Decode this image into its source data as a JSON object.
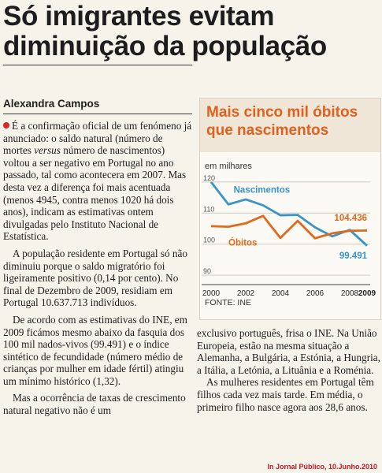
{
  "headline": "Só imigrantes evitam diminuição da população",
  "author": "Alexandra Campos",
  "col1": {
    "p1_a": "É a confirmação oficial de um fenómeno já anunciado: o saldo natural (número de mortes ",
    "p1_em": "versus",
    "p1_b": " número de nascimentos) voltou a ser negativo em Portugal no ano passado, tal como acontecera em 2007. Mas desta vez a diferença foi mais acentuada (menos 4945, contra menos 1020 há dois anos), indicam as estimativas ontem divulgadas pelo Instituto Nacional de Estatística.",
    "p2": "A população residente em Portugal só não diminuiu porque o saldo migratório foi ligeiramente positivo (0,14 por cento). No final de Dezembro de 2009, residiam em Portugal 10.637.713 indivíduos.",
    "p3": "De acordo com as estimativas do INE, em 2009 ficámos mesmo abaixo da fasquia dos 100 mil nados-vivos (99.491) e o índice sintético de fecundidade (número médio de crianças por mulher em idade fértil) atingiu um mínimo histórico (1,32).",
    "p4": "Mas a ocorrência de taxas de crescimento natural negativo não é um"
  },
  "col2": {
    "p1": "exclusivo português, frisa o INE. Na União Europeia, estão na mesma situação a Alemanha, a Bulgária, a Estónia, a Hungria, a Itália, a Letónia, a Lituânia e a Roménia.",
    "p2": "As mulheres residentes em Portugal têm filhos cada vez mais tarde. Em média, o primeiro filho nasce agora aos 28,6 anos."
  },
  "chart_data": {
    "type": "line",
    "title": "Mais cinco mil óbitos que nascimentos",
    "unit_label": "em milhares",
    "source": "FONTE: INE",
    "x": [
      2000,
      2001,
      2002,
      2003,
      2004,
      2005,
      2006,
      2007,
      2008,
      2009
    ],
    "xticks": [
      2000,
      2002,
      2004,
      2006,
      2008,
      2009
    ],
    "yticks": [
      90,
      100,
      110,
      120
    ],
    "ylim": [
      88,
      122
    ],
    "grid": true,
    "series": [
      {
        "name": "Nascimentos",
        "color": "#3a94c7",
        "values": [
          120.0,
          112.8,
          114.4,
          112.5,
          109.3,
          109.4,
          105.4,
          102.5,
          104.6,
          99.5
        ],
        "end_label": "99.491"
      },
      {
        "name": "Óbitos",
        "color": "#e06a1b",
        "values": [
          105.8,
          105.6,
          106.7,
          109.1,
          102.0,
          107.5,
          101.9,
          103.5,
          104.3,
          104.4
        ],
        "end_label": "104.436"
      }
    ]
  },
  "credit": "In Jornal Público, 10.Junho.2010"
}
